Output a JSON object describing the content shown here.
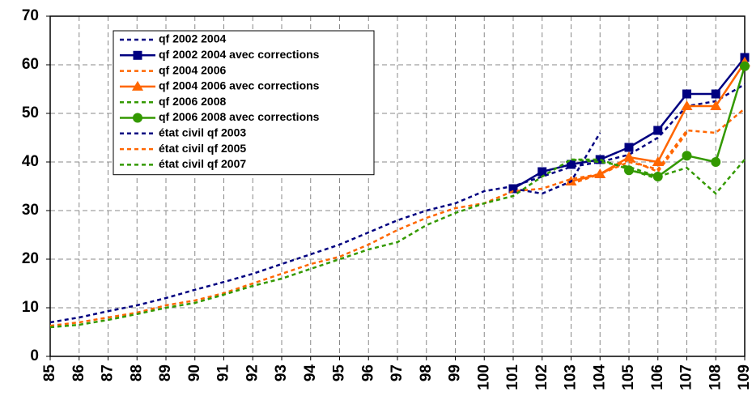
{
  "chart_data": {
    "type": "line",
    "categories": [
      "85",
      "86",
      "87",
      "88",
      "89",
      "90",
      "91",
      "92",
      "93",
      "94",
      "95",
      "96",
      "97",
      "98",
      "99",
      "100",
      "101",
      "102",
      "103",
      "104",
      "105",
      "106",
      "107",
      "108",
      "109"
    ],
    "ylim": [
      0,
      70
    ],
    "yticks": [
      0,
      10,
      20,
      30,
      40,
      50,
      60,
      70
    ],
    "grid": true,
    "legend": "top-left",
    "series": [
      {
        "name": "qf 2002 2004",
        "color": "#000080",
        "style": "dashed",
        "marker": "none",
        "values": [
          7,
          8,
          9.3,
          10.5,
          12,
          13.7,
          15.3,
          17,
          19,
          21,
          23,
          25.5,
          28,
          30,
          31.5,
          34,
          35,
          37,
          39,
          40,
          41.5,
          45,
          51.5,
          52.5,
          56
        ]
      },
      {
        "name": "qf 2002 2004 avec corrections",
        "color": "#000080",
        "style": "solid",
        "marker": "square",
        "values": [
          null,
          null,
          null,
          null,
          null,
          null,
          null,
          null,
          null,
          null,
          null,
          null,
          null,
          null,
          null,
          null,
          34.5,
          38,
          39.5,
          40.5,
          43,
          46.5,
          54,
          54,
          61.5
        ]
      },
      {
        "name": "qf 2004 2006",
        "color": "#ff6600",
        "style": "dashed",
        "marker": "none",
        "values": [
          6.3,
          7,
          8,
          9,
          10.5,
          11.5,
          13,
          15,
          17,
          19,
          20.5,
          23,
          26,
          28.5,
          30.5,
          31.5,
          34,
          34.5,
          36.5,
          37.5,
          40,
          38.5,
          46.5,
          46,
          51
        ]
      },
      {
        "name": "qf 2004 2006 avec corrections",
        "color": "#ff6600",
        "style": "solid",
        "marker": "triangle",
        "values": [
          null,
          null,
          null,
          null,
          null,
          null,
          null,
          null,
          null,
          null,
          null,
          null,
          null,
          null,
          null,
          null,
          null,
          null,
          36,
          37.5,
          41,
          40,
          51.5,
          51.5,
          60.5
        ]
      },
      {
        "name": "qf 2006 2008",
        "color": "#339900",
        "style": "dashed",
        "marker": "none",
        "values": [
          6,
          6.5,
          7.5,
          8.7,
          10,
          11,
          12.7,
          14.5,
          16,
          18,
          20,
          22,
          23.5,
          27,
          29.5,
          31.5,
          33,
          37,
          40.5,
          40,
          39,
          37,
          38.8,
          33.5,
          40.5
        ]
      },
      {
        "name": "qf 2006 2008 avec corrections",
        "color": "#339900",
        "style": "solid",
        "marker": "circle",
        "values": [
          null,
          null,
          null,
          null,
          null,
          null,
          null,
          null,
          null,
          null,
          null,
          null,
          null,
          null,
          null,
          null,
          null,
          null,
          null,
          null,
          38.3,
          37,
          41.3,
          40,
          59.7
        ]
      },
      {
        "name": "état civil qf 2003",
        "color": "#000080",
        "style": "dashed",
        "marker": "none",
        "values": [
          null,
          null,
          null,
          null,
          null,
          null,
          null,
          null,
          null,
          null,
          null,
          null,
          null,
          null,
          null,
          null,
          34.5,
          33.5,
          36,
          46,
          null,
          null,
          null,
          null,
          null
        ]
      },
      {
        "name": "état civil qf 2005",
        "color": "#ff6600",
        "style": "dashed",
        "marker": "none",
        "values": [
          null,
          null,
          null,
          null,
          null,
          null,
          null,
          null,
          null,
          null,
          null,
          null,
          null,
          null,
          null,
          null,
          null,
          null,
          35.5,
          37.5,
          40.5,
          38,
          46,
          null,
          null
        ]
      },
      {
        "name": "état civil qf 2007",
        "color": "#339900",
        "style": "dashed",
        "marker": "none",
        "values": [
          null,
          null,
          null,
          null,
          null,
          null,
          null,
          null,
          null,
          null,
          null,
          null,
          null,
          null,
          null,
          null,
          null,
          null,
          40.5,
          40.5,
          38.5,
          36.5,
          null,
          null,
          null
        ]
      }
    ]
  }
}
